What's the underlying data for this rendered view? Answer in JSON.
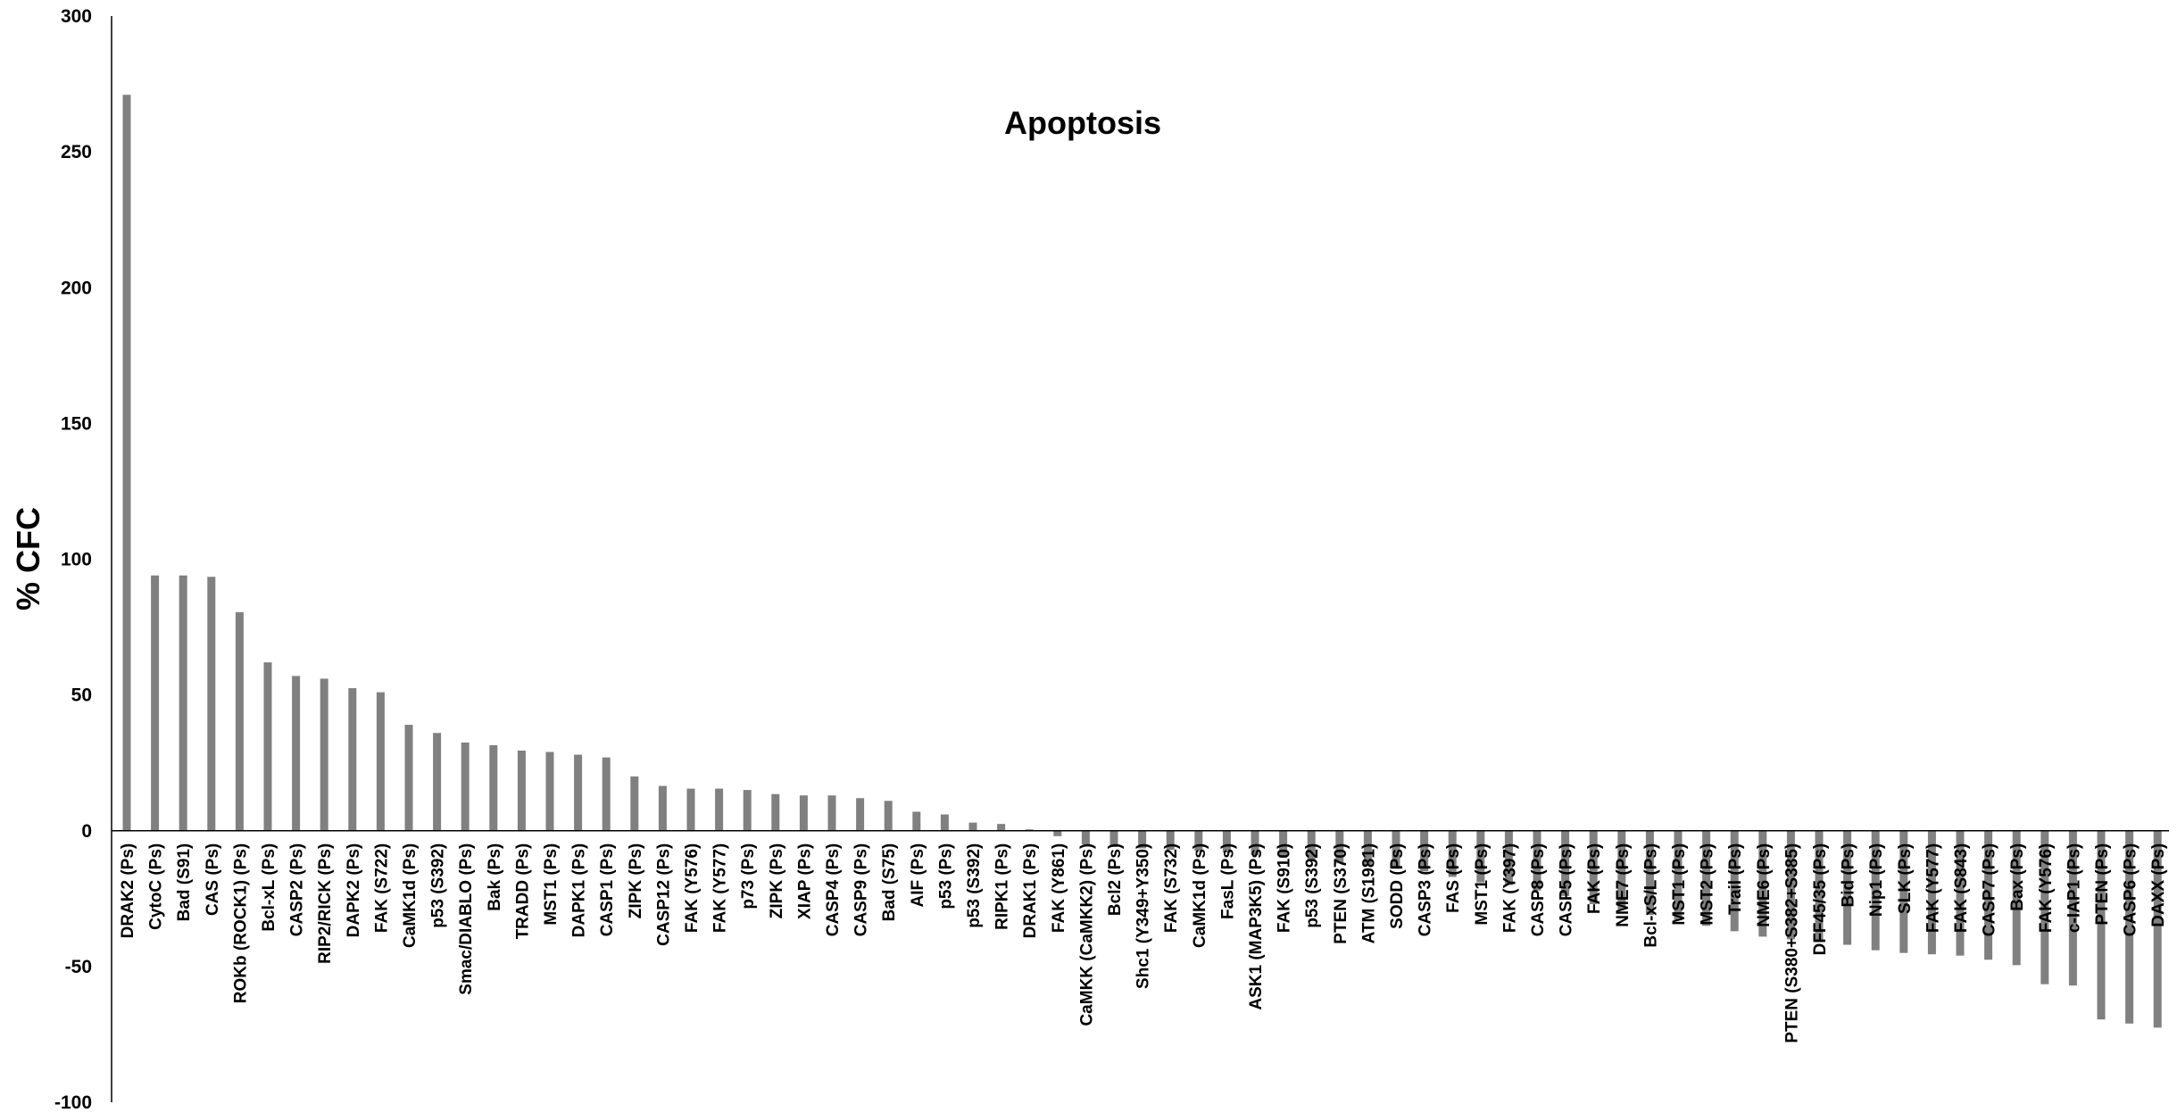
{
  "chart_data": {
    "type": "bar",
    "title": "Apoptosis",
    "xlabel": "",
    "ylabel": "% CFC",
    "ylim": [
      -100,
      300
    ],
    "yticks": [
      -100,
      -50,
      0,
      50,
      100,
      150,
      200,
      250,
      300
    ],
    "grid": false,
    "bar_color": "#808080",
    "categories": [
      "DRAK2 (Ps)",
      "CytoC (Ps)",
      "Bad (S91)",
      "CAS (Ps)",
      "ROKb (ROCK1) (Ps)",
      "Bcl-xL (Ps)",
      "CASP2 (Ps)",
      "RIP2/RICK (Ps)",
      "DAPK2 (Ps)",
      "FAK (S722)",
      "CaMK1d (Ps)",
      "p53 (S392)",
      "Smac/DIABLO (Ps)",
      "Bak (Ps)",
      "TRADD (Ps)",
      "MST1 (Ps)",
      "DAPK1 (Ps)",
      "CASP1 (Ps)",
      "ZIPK (Ps)",
      "CASP12 (Ps)",
      "FAK (Y576)",
      "FAK (Y577)",
      "p73 (Ps)",
      "ZIPK (Ps)",
      "XIAP (Ps)",
      "CASP4 (Ps)",
      "CASP9 (Ps)",
      "Bad (S75)",
      "AIF (Ps)",
      "p53 (Ps)",
      "p53 (S392)",
      "RIPK1 (Ps)",
      "DRAK1 (Ps)",
      "FAK (Y861)",
      "CaMKK (CaMKK2) (Ps)",
      "Bcl2 (Ps)",
      "Shc1 (Y349+Y350)",
      "FAK (S732)",
      "CaMK1d (Ps)",
      "FasL (Ps)",
      "ASK1 (MAP3K5) (Ps)",
      "FAK (S910)",
      "p53 (S392)",
      "PTEN (S370)",
      "ATM (S1981)",
      "SODD (Ps)",
      "CASP3 (Ps)",
      "FAS (Ps)",
      "MST1 (Ps)",
      "FAK (Y397)",
      "CASP8 (Ps)",
      "CASP5 (Ps)",
      "FAK (Ps)",
      "NME7 (Ps)",
      "Bcl-xS/L (Ps)",
      "MST1 (Ps)",
      "MST2 (Ps)",
      "Trail (Ps)",
      "NME6 (Ps)",
      "PTEN (S380+S382+S385)",
      "DFF45/35 (Ps)",
      "Bid (Ps)",
      "Nip1 (Ps)",
      "SLK (Ps)",
      "FAK (Y577)",
      "FAK (S843)",
      "CASP7 (Ps)",
      "Bax (Ps)",
      "FAK (Y576)",
      "c-IAP1 (Ps)",
      "PTEN (Ps)",
      "CASP6 (Ps)",
      "DAXX (Ps)"
    ],
    "values": [
      271,
      94,
      94,
      93.5,
      80.5,
      62,
      57,
      56,
      52.5,
      51,
      39,
      36,
      32.5,
      31.5,
      29.5,
      29,
      28,
      27,
      20,
      16.5,
      15.5,
      15.5,
      15,
      13.5,
      13,
      13,
      12,
      11,
      7,
      6,
      3,
      2.5,
      0.5,
      -2,
      -5,
      -6,
      -6.5,
      -7,
      -7.5,
      -8,
      -9,
      -10,
      -11,
      -12,
      -13,
      -14,
      -15,
      -17,
      -19,
      -20,
      -22,
      -24,
      -27,
      -29,
      -31,
      -33,
      -35,
      -37,
      -39,
      -40,
      -41,
      -42,
      -44,
      -45,
      -45.5,
      -46,
      -47.5,
      -49.5,
      -56.5,
      -57,
      -69.5,
      -71,
      -72.5
    ]
  }
}
